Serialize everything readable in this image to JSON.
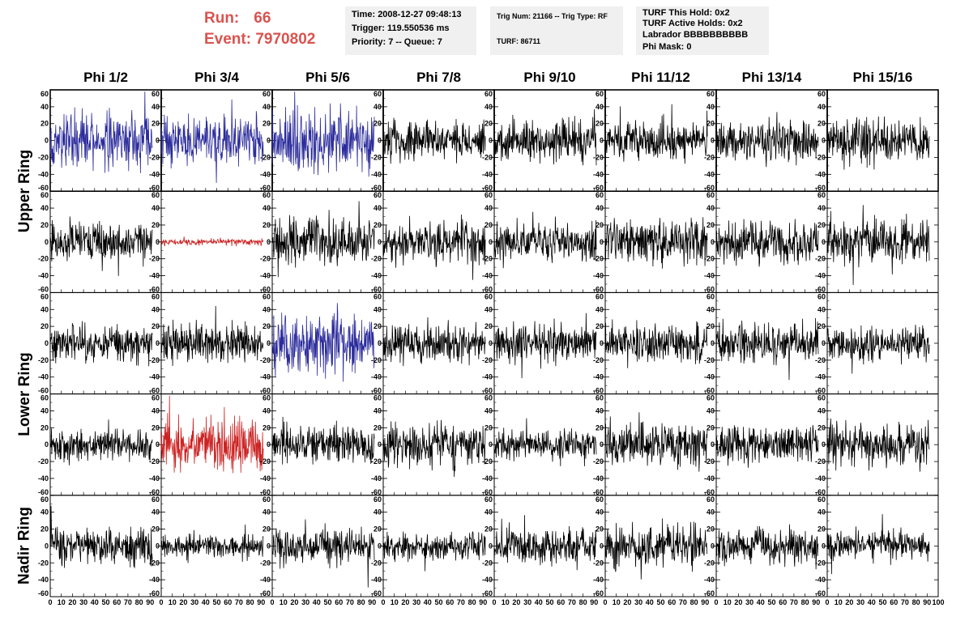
{
  "header": {
    "run_label": "Run:",
    "run_value": "66",
    "event_label": "Event:",
    "event_value": "7970802",
    "time": "Time: 2008-12-27 09:48:13",
    "trigger": "Trigger: 119.550536 ms",
    "priority": "Priority: 7 -- Queue: 7",
    "trig_num": "Trig Num: 21166 -- Trig Type: RF",
    "turf": "TURF: 86711",
    "turf_this_hold": "TURF This Hold: 0x2",
    "turf_active_holds": "TURF Active Holds: 0x2",
    "labrador": "Labrador BBBBBBBBBB",
    "phi_mask": "Phi Mask: 0"
  },
  "colors": {
    "header_red": "#d9534f",
    "trace_black": "#000000",
    "trace_blue": "#2b2b9c",
    "trace_red": "#cc2222",
    "infobox_bg": "#f0f0f0"
  },
  "chart_data": {
    "type": "line",
    "columns": [
      "Phi 1/2",
      "Phi 3/4",
      "Phi 5/6",
      "Phi 7/8",
      "Phi 9/10",
      "Phi 11/12",
      "Phi 13/14",
      "Phi 15/16"
    ],
    "ring_labels": [
      {
        "label": "Upper Ring",
        "rows": [
          0,
          1
        ]
      },
      {
        "label": "Lower Ring",
        "rows": [
          2,
          3
        ]
      },
      {
        "label": "Nadir Ring",
        "rows": [
          4,
          4
        ]
      }
    ],
    "xlim": [
      0,
      100
    ],
    "ylim": [
      -60,
      60
    ],
    "x_ticks": [
      0,
      10,
      20,
      30,
      40,
      50,
      60,
      70,
      80,
      90,
      100
    ],
    "y_ticks": [
      -60,
      -40,
      -20,
      0,
      20,
      40,
      60
    ],
    "samples_per_trace": 260,
    "trace_x_range": [
      0,
      92
    ],
    "panels": [
      [
        {
          "color": "blue",
          "amp": 24,
          "seed": 11
        },
        {
          "color": "blue",
          "amp": 20,
          "seed": 12
        },
        {
          "color": "blue",
          "amp": 28,
          "seed": 13
        },
        {
          "color": "black",
          "amp": 17,
          "seed": 14
        },
        {
          "color": "black",
          "amp": 18,
          "seed": 15
        },
        {
          "color": "black",
          "amp": 16,
          "seed": 16
        },
        {
          "color": "black",
          "amp": 18,
          "seed": 17
        },
        {
          "color": "black",
          "amp": 19,
          "seed": 18
        }
      ],
      [
        {
          "color": "black",
          "amp": 17,
          "seed": 21
        },
        {
          "color": "red",
          "amp": 3,
          "seed": 22
        },
        {
          "color": "black",
          "amp": 20,
          "seed": 23
        },
        {
          "color": "black",
          "amp": 19,
          "seed": 24
        },
        {
          "color": "black",
          "amp": 17,
          "seed": 25
        },
        {
          "color": "black",
          "amp": 20,
          "seed": 26
        },
        {
          "color": "black",
          "amp": 18,
          "seed": 27
        },
        {
          "color": "black",
          "amp": 18,
          "seed": 28
        }
      ],
      [
        {
          "color": "black",
          "amp": 15,
          "seed": 31
        },
        {
          "color": "black",
          "amp": 18,
          "seed": 32
        },
        {
          "color": "blue",
          "amp": 26,
          "seed": 33
        },
        {
          "color": "black",
          "amp": 16,
          "seed": 34
        },
        {
          "color": "black",
          "amp": 17,
          "seed": 35
        },
        {
          "color": "black",
          "amp": 17,
          "seed": 36
        },
        {
          "color": "black",
          "amp": 17,
          "seed": 37
        },
        {
          "color": "black",
          "amp": 15,
          "seed": 38
        }
      ],
      [
        {
          "color": "black",
          "amp": 13,
          "seed": 41
        },
        {
          "color": "red",
          "amp": 24,
          "seed": 42
        },
        {
          "color": "black",
          "amp": 17,
          "seed": 43
        },
        {
          "color": "black",
          "amp": 18,
          "seed": 44
        },
        {
          "color": "black",
          "amp": 13,
          "seed": 45
        },
        {
          "color": "black",
          "amp": 18,
          "seed": 46
        },
        {
          "color": "black",
          "amp": 16,
          "seed": 47
        },
        {
          "color": "black",
          "amp": 18,
          "seed": 48
        }
      ],
      [
        {
          "color": "black",
          "amp": 16,
          "seed": 51
        },
        {
          "color": "black",
          "amp": 11,
          "seed": 52
        },
        {
          "color": "black",
          "amp": 16,
          "seed": 53
        },
        {
          "color": "black",
          "amp": 12,
          "seed": 54
        },
        {
          "color": "black",
          "amp": 16,
          "seed": 55
        },
        {
          "color": "black",
          "amp": 18,
          "seed": 56
        },
        {
          "color": "black",
          "amp": 16,
          "seed": 57
        },
        {
          "color": "black",
          "amp": 14,
          "seed": 58
        }
      ]
    ]
  }
}
